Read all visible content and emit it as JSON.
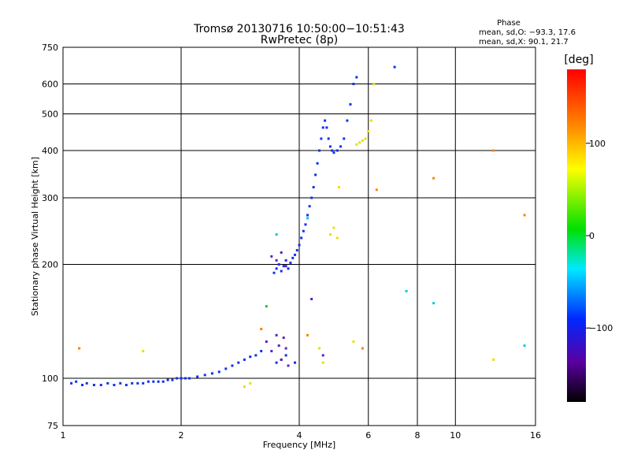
{
  "chart_data": {
    "type": "scatter",
    "title": "Tromsø 20130716 10:50:00−10:51:43",
    "subtitle": "RwPretec (8p)",
    "xlabel": "Frequency [MHz]",
    "ylabel": "Stationary phase Virtual Height [km]",
    "xscale": "log2",
    "yscale": "log",
    "xlim": [
      1,
      16
    ],
    "ylim": [
      75,
      750
    ],
    "x_ticks": [
      1,
      2,
      4,
      6,
      8,
      10,
      16
    ],
    "x_tick_labels": [
      "1",
      "2",
      "4",
      "6",
      "8",
      "10",
      "16"
    ],
    "y_ticks": [
      75,
      100,
      200,
      300,
      400,
      500,
      600,
      750
    ],
    "y_tick_labels": [
      "75",
      "100",
      "200",
      "300",
      "400",
      "500",
      "600",
      "750"
    ],
    "phase_stats": {
      "title": "Phase",
      "line_o": "mean, sd,O: −93.3, 17.6",
      "line_x": "mean, sd,X:  90.1, 21.7"
    },
    "colorbar": {
      "label": "[deg]",
      "range": [
        -180,
        180
      ],
      "ticks": [
        100,
        0,
        -100
      ],
      "tick_labels": [
        "100",
        "0",
        "−100"
      ]
    },
    "series": [
      {
        "name": "O-mode trace (blue)",
        "color": "#1030f0",
        "points": [
          [
            1.05,
            97
          ],
          [
            1.08,
            98
          ],
          [
            1.12,
            96
          ],
          [
            1.15,
            97
          ],
          [
            1.2,
            96
          ],
          [
            1.25,
            96
          ],
          [
            1.3,
            97
          ],
          [
            1.35,
            96
          ],
          [
            1.4,
            97
          ],
          [
            1.45,
            96
          ],
          [
            1.5,
            97
          ],
          [
            1.55,
            97
          ],
          [
            1.6,
            97
          ],
          [
            1.65,
            98
          ],
          [
            1.7,
            98
          ],
          [
            1.75,
            98
          ],
          [
            1.8,
            98
          ],
          [
            1.85,
            99
          ],
          [
            1.9,
            99
          ],
          [
            1.95,
            100
          ],
          [
            2.0,
            100
          ],
          [
            2.05,
            100
          ],
          [
            2.1,
            100
          ],
          [
            2.2,
            101
          ],
          [
            2.3,
            102
          ],
          [
            2.4,
            103
          ],
          [
            2.5,
            104
          ],
          [
            2.6,
            106
          ],
          [
            2.7,
            108
          ],
          [
            2.8,
            110
          ],
          [
            2.9,
            112
          ],
          [
            3.0,
            114
          ],
          [
            3.1,
            115
          ],
          [
            3.2,
            118
          ],
          [
            3.5,
            110
          ],
          [
            3.6,
            112
          ],
          [
            3.7,
            115
          ],
          [
            3.9,
            110
          ],
          [
            3.45,
            190
          ],
          [
            3.5,
            195
          ],
          [
            3.55,
            200
          ],
          [
            3.6,
            192
          ],
          [
            3.65,
            198
          ],
          [
            3.7,
            205
          ],
          [
            3.75,
            195
          ],
          [
            3.8,
            202
          ],
          [
            3.85,
            208
          ],
          [
            3.9,
            212
          ],
          [
            3.95,
            218
          ],
          [
            4.0,
            225
          ],
          [
            4.05,
            235
          ],
          [
            4.1,
            245
          ],
          [
            4.15,
            255
          ],
          [
            4.2,
            270
          ],
          [
            4.25,
            285
          ],
          [
            4.3,
            300
          ],
          [
            4.35,
            320
          ],
          [
            4.4,
            345
          ],
          [
            4.45,
            370
          ],
          [
            4.5,
            400
          ],
          [
            4.55,
            430
          ],
          [
            4.6,
            460
          ],
          [
            4.65,
            480
          ],
          [
            4.7,
            460
          ],
          [
            4.75,
            430
          ],
          [
            4.8,
            410
          ],
          [
            4.85,
            400
          ],
          [
            4.9,
            395
          ],
          [
            5.0,
            400
          ],
          [
            5.1,
            410
          ],
          [
            5.2,
            430
          ],
          [
            5.3,
            480
          ],
          [
            5.4,
            530
          ],
          [
            5.5,
            600
          ],
          [
            5.6,
            625
          ],
          [
            7.0,
            665
          ]
        ]
      },
      {
        "name": "Purple scatter",
        "color": "#6020c0",
        "points": [
          [
            3.3,
            125
          ],
          [
            3.4,
            118
          ],
          [
            3.5,
            130
          ],
          [
            3.55,
            122
          ],
          [
            3.6,
            112
          ],
          [
            3.65,
            128
          ],
          [
            3.7,
            120
          ],
          [
            3.75,
            108
          ],
          [
            3.4,
            210
          ],
          [
            3.5,
            205
          ],
          [
            3.6,
            215
          ],
          [
            3.7,
            198
          ],
          [
            4.6,
            115
          ],
          [
            4.3,
            162
          ]
        ]
      },
      {
        "name": "Cyan points",
        "color": "#00c8e8",
        "points": [
          [
            4.2,
            265
          ],
          [
            3.5,
            240
          ],
          [
            7.5,
            170
          ],
          [
            8.8,
            158
          ],
          [
            15.0,
            122
          ]
        ]
      },
      {
        "name": "X-mode trace (yellow)",
        "color": "#e8e000",
        "points": [
          [
            4.8,
            240
          ],
          [
            4.9,
            250
          ],
          [
            5.0,
            235
          ],
          [
            5.05,
            320
          ],
          [
            5.6,
            415
          ],
          [
            5.7,
            420
          ],
          [
            5.8,
            425
          ],
          [
            5.9,
            430
          ],
          [
            6.0,
            450
          ],
          [
            6.1,
            480
          ],
          [
            6.2,
            600
          ],
          [
            2.9,
            95
          ],
          [
            3.0,
            97
          ],
          [
            1.6,
            118
          ],
          [
            4.5,
            120
          ],
          [
            4.6,
            110
          ],
          [
            5.5,
            125
          ],
          [
            12.5,
            112
          ]
        ]
      },
      {
        "name": "Orange points",
        "color": "#ff8000",
        "points": [
          [
            1.1,
            120
          ],
          [
            3.2,
            135
          ],
          [
            4.2,
            130
          ],
          [
            5.8,
            120
          ],
          [
            6.3,
            315
          ],
          [
            8.8,
            338
          ],
          [
            12.5,
            400
          ],
          [
            15.0,
            270
          ]
        ]
      },
      {
        "name": "Green point",
        "color": "#20c040",
        "points": [
          [
            3.3,
            155
          ]
        ]
      }
    ]
  }
}
